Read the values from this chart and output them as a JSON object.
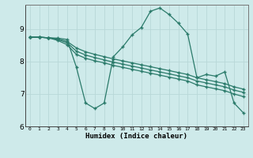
{
  "xlabel": "Humidex (Indice chaleur)",
  "bg_color": "#ceeaea",
  "grid_color": "#b8d8d8",
  "line_color": "#2a7a6a",
  "xlim": [
    -0.5,
    23.5
  ],
  "ylim": [
    6.0,
    9.75
  ],
  "yticks": [
    6,
    7,
    8,
    9
  ],
  "xticks": [
    0,
    1,
    2,
    3,
    4,
    5,
    6,
    7,
    8,
    9,
    10,
    11,
    12,
    13,
    14,
    15,
    16,
    17,
    18,
    19,
    20,
    21,
    22,
    23
  ],
  "line_jagged": [
    8.75,
    8.75,
    8.73,
    8.72,
    8.68,
    7.83,
    6.72,
    6.55,
    6.72,
    8.15,
    8.45,
    8.82,
    9.05,
    9.55,
    9.65,
    9.45,
    9.18,
    8.85,
    7.5,
    7.6,
    7.55,
    7.68,
    6.72,
    6.42
  ],
  "line_a": [
    8.75,
    8.75,
    8.73,
    8.7,
    8.62,
    8.42,
    8.3,
    8.22,
    8.15,
    8.08,
    8.02,
    7.96,
    7.9,
    7.84,
    7.78,
    7.72,
    7.66,
    7.6,
    7.5,
    7.44,
    7.38,
    7.32,
    7.22,
    7.15
  ],
  "line_b": [
    8.75,
    8.75,
    8.73,
    8.68,
    8.58,
    8.32,
    8.2,
    8.12,
    8.05,
    7.98,
    7.92,
    7.86,
    7.8,
    7.74,
    7.68,
    7.62,
    7.56,
    7.5,
    7.4,
    7.34,
    7.28,
    7.22,
    7.12,
    7.05
  ],
  "line_c": [
    8.75,
    8.75,
    8.73,
    8.65,
    8.52,
    8.22,
    8.1,
    8.02,
    7.96,
    7.88,
    7.82,
    7.76,
    7.7,
    7.64,
    7.58,
    7.52,
    7.46,
    7.4,
    7.28,
    7.22,
    7.16,
    7.1,
    7.0,
    6.92
  ]
}
